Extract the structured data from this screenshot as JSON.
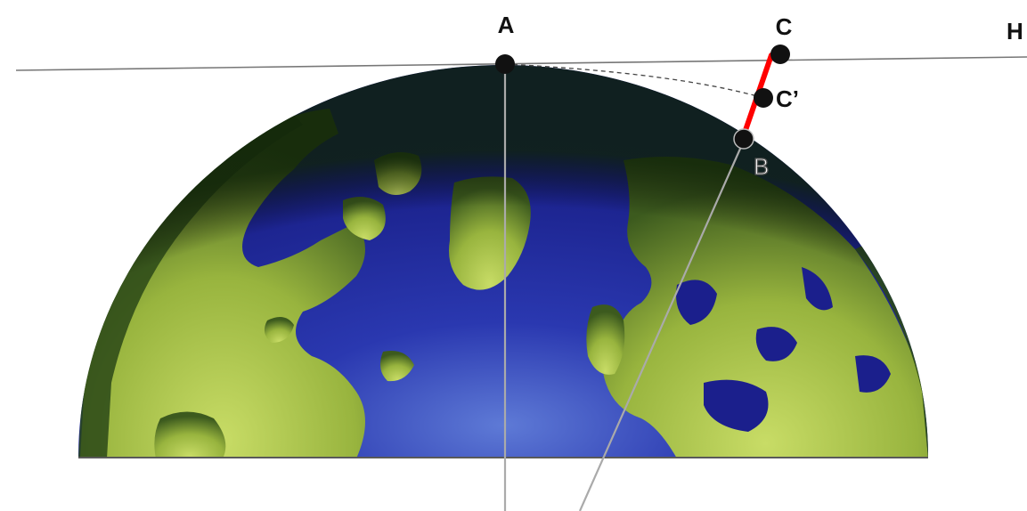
{
  "diagram": {
    "points": {
      "A": "A",
      "B": "B",
      "C": "C",
      "C_prime": "C’",
      "H": "H"
    }
  },
  "colors": {
    "ocean": "#1b1f8c",
    "land": "#a9c24a",
    "globe_edge": "#1c3a14",
    "horizon_line": "#777777",
    "highlight_segment": "#ff0000",
    "marker": "#111111"
  }
}
